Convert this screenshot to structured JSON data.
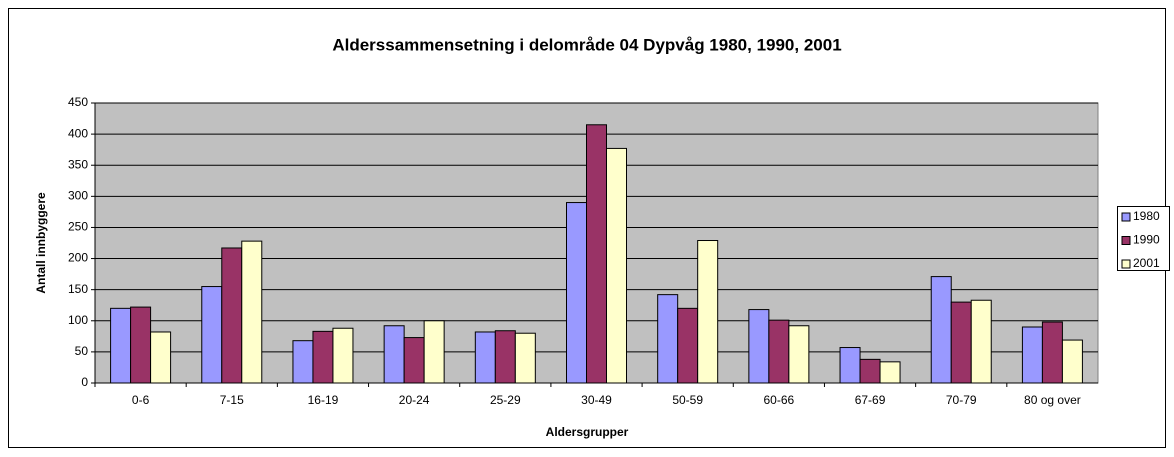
{
  "chart_data": {
    "type": "bar",
    "title": "Alderssammensetning i delområde 04 Dypvåg 1980, 1990, 2001",
    "x_label": "Aldersgrupper",
    "y_label": "Antall innbyggere",
    "categories": [
      "0-6",
      "7-15",
      "16-19",
      "20-24",
      "25-29",
      "30-49",
      "50-59",
      "60-66",
      "67-69",
      "70-79",
      "80 og over"
    ],
    "series": [
      {
        "name": "1980",
        "color": "#9999ff",
        "values": [
          120,
          155,
          68,
          92,
          82,
          290,
          142,
          118,
          57,
          171,
          90
        ]
      },
      {
        "name": "1990",
        "color": "#993366",
        "values": [
          122,
          217,
          83,
          73,
          84,
          415,
          120,
          101,
          38,
          130,
          98
        ]
      },
      {
        "name": "2001",
        "color": "#ffffcc",
        "values": [
          82,
          228,
          88,
          100,
          80,
          377,
          229,
          92,
          34,
          133,
          69
        ]
      }
    ],
    "ylim": [
      0,
      450
    ],
    "yticks": [
      0,
      50,
      100,
      150,
      200,
      250,
      300,
      350,
      400,
      450
    ],
    "grid": true,
    "legend": "right"
  }
}
